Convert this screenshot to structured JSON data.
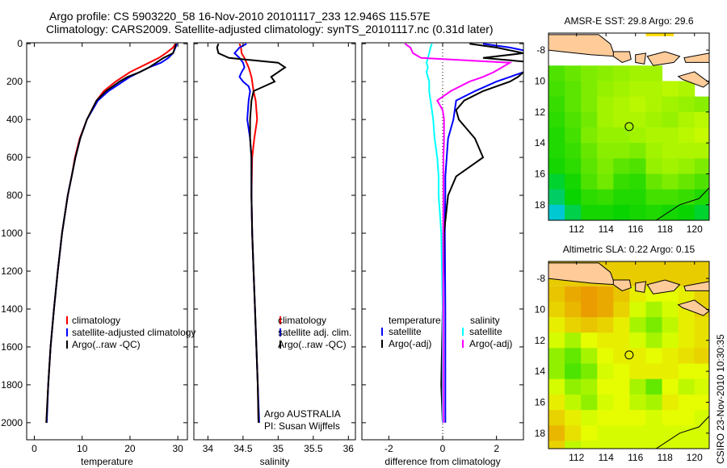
{
  "title_line1": "Argo profile: CS 5903220_58 16-Nov-2010 20101117_233 12.946S 115.57E",
  "title_line2": "Climatology: CARS2009. Satellite-adjusted climatology: synTS_20101117.nc (0.31d later)",
  "side_label": "CSIRO 23-Nov-2010 10:30:35",
  "colors": {
    "clim": "#ff0000",
    "sat": "#0000ff",
    "argo": "#000000",
    "sal_sat": "#00ffff",
    "sal_argo": "#ff00ff",
    "land": "#ffcc99"
  },
  "chart_data": [
    {
      "type": "line",
      "xlabel": "temperature",
      "xlim": [
        -1.6,
        32
      ],
      "ylim": [
        2090,
        -5
      ],
      "xticks": [
        "0",
        "10",
        "20",
        "30"
      ],
      "xtick_values": [
        0,
        10,
        20,
        30
      ],
      "yticks": [
        "0",
        "200",
        "400",
        "600",
        "800",
        "1000",
        "1200",
        "1400",
        "1600",
        "1800",
        "2000"
      ],
      "ytick_values": [
        0,
        200,
        400,
        600,
        800,
        1000,
        1200,
        1400,
        1600,
        1800,
        2000
      ],
      "depth": [
        0,
        20,
        50,
        75,
        100,
        125,
        150,
        175,
        200,
        250,
        300,
        400,
        500,
        600,
        700,
        800,
        1000,
        1200,
        1400,
        1600,
        1800,
        2000
      ],
      "legend": [
        "climatology",
        "satellite-adjusted climatology",
        "Argo(..raw -QC)"
      ],
      "series": [
        {
          "name": "climatology",
          "color": "#ff0000",
          "values": [
            29.5,
            29,
            27.5,
            26,
            24,
            22,
            20,
            18.5,
            17,
            14.5,
            13,
            11,
            9.5,
            8.5,
            7.8,
            7,
            5.8,
            4.9,
            4.1,
            3.4,
            2.9,
            2.5
          ]
        },
        {
          "name": "satellite-adjusted climatology",
          "color": "#0000ff",
          "values": [
            29.8,
            29.5,
            29,
            28,
            26.5,
            24,
            22,
            20,
            18.5,
            15.5,
            13.3,
            11,
            9.6,
            8.6,
            7.8,
            7,
            5.8,
            4.9,
            4.1,
            3.4,
            2.9,
            2.6
          ]
        },
        {
          "name": "Argo(..raw -QC)",
          "color": "#000000",
          "values": [
            29.6,
            29.4,
            29,
            27,
            25.5,
            24,
            22,
            19.5,
            17.8,
            15,
            13,
            11,
            9.6,
            8.6,
            7.8,
            7,
            5.8,
            4.9,
            4.1,
            3.4,
            2.9,
            2.5
          ]
        }
      ]
    },
    {
      "type": "line",
      "xlabel": "salinity",
      "xlim": [
        33.8,
        36.1
      ],
      "ylim": [
        2090,
        -5
      ],
      "xticks": [
        "34",
        "34.5",
        "35",
        "35.5",
        "36"
      ],
      "xtick_values": [
        34,
        34.5,
        35,
        35.5,
        36
      ],
      "depth": [
        0,
        20,
        50,
        75,
        100,
        125,
        150,
        175,
        200,
        225,
        250,
        300,
        400,
        500,
        600,
        800,
        1000,
        1200,
        1400,
        1600,
        1800,
        2000
      ],
      "legend": [
        "climatology",
        "satellite adj. clim.",
        "Argo(..raw -QC)"
      ],
      "annotation": [
        "Argo AUSTRALIA",
        "PI: Susan Wijffels"
      ],
      "series": [
        {
          "name": "climatology",
          "color": "#ff0000",
          "values": [
            34.45,
            34.47,
            34.48,
            34.52,
            34.55,
            34.58,
            34.6,
            34.62,
            34.63,
            34.64,
            34.65,
            34.68,
            34.7,
            34.66,
            34.63,
            34.62,
            34.63,
            34.65,
            34.67,
            34.69,
            34.71,
            34.72
          ]
        },
        {
          "name": "satellite adj. clim.",
          "color": "#0000ff",
          "values": [
            34.55,
            34.45,
            34.38,
            34.45,
            34.5,
            34.52,
            34.48,
            34.45,
            34.5,
            34.58,
            34.6,
            34.58,
            34.56,
            34.6,
            34.62,
            34.62,
            34.63,
            34.65,
            34.67,
            34.69,
            34.71,
            34.73
          ]
        },
        {
          "name": "Argo(..raw -QC)",
          "color": "#000000",
          "values": [
            34.15,
            34.13,
            34.15,
            34.3,
            35.0,
            35.1,
            35.0,
            34.9,
            34.95,
            34.8,
            34.65,
            34.62,
            34.6,
            34.6,
            34.62,
            34.62,
            34.63,
            34.65,
            34.67,
            34.69,
            34.71,
            34.72
          ]
        }
      ]
    },
    {
      "type": "line",
      "xlabel": "difference from climatology",
      "xlim": [
        -3,
        3
      ],
      "ylim": [
        2090,
        -5
      ],
      "xticks": [
        "-2",
        "0",
        "2"
      ],
      "xtick_values": [
        -2,
        0,
        2
      ],
      "depth": [
        0,
        20,
        50,
        75,
        100,
        125,
        150,
        175,
        200,
        250,
        300,
        350,
        400,
        500,
        600,
        700,
        800,
        1000,
        1400,
        1800,
        2000
      ],
      "legend_headers": [
        "temperature",
        "salinity"
      ],
      "legend": [
        "satellite",
        "Argo(-adj)",
        "satellite",
        "Argo(-adj)"
      ],
      "series": [
        {
          "name": "temperature satellite",
          "color": "#0000ff",
          "values": [
            1.5,
            2.5,
            3.5,
            3.8,
            4,
            3.5,
            3,
            2.5,
            2,
            1.2,
            0.5,
            0.45,
            0.4,
            0.2,
            0.15,
            0.1,
            0.1,
            0.08,
            0.1,
            0.1,
            0.1
          ]
        },
        {
          "name": "temperature Argo(-adj)",
          "color": "#000000",
          "values": [
            1,
            2,
            3,
            1.5,
            3.5,
            3.2,
            3,
            2.8,
            2.5,
            1.5,
            0.8,
            0.5,
            0.6,
            1.2,
            1.5,
            0.5,
            0.2,
            0.05,
            0,
            -0.05,
            0
          ]
        },
        {
          "name": "salinity satellite",
          "color": "#00ffff",
          "values": [
            -0.4,
            -0.45,
            -0.5,
            -0.55,
            -0.6,
            -0.55,
            -0.6,
            -0.55,
            -0.5,
            -0.5,
            -0.45,
            -0.4,
            -0.35,
            -0.3,
            -0.2,
            -0.15,
            -0.15,
            -0.05,
            0,
            0,
            0
          ]
        },
        {
          "name": "salinity Argo(-adj)",
          "color": "#ff00ff",
          "values": [
            -1.4,
            -1.2,
            -1.1,
            -0.8,
            2.5,
            2.2,
            1.9,
            1.5,
            1.0,
            0.3,
            -0.2,
            0,
            0.05,
            0.05,
            0.03,
            0.03,
            0.03,
            0.02,
            0.02,
            0.02,
            0.02
          ]
        }
      ]
    },
    {
      "type": "heatmap",
      "title": "AMSR-E SST: 29.8 Argo: 29.6",
      "xlim": [
        110.1,
        121
      ],
      "ylim": [
        -6.9,
        -19.0
      ],
      "xticks": [
        "112",
        "114",
        "116",
        "118",
        "120"
      ],
      "xtick_values": [
        112,
        114,
        116,
        118,
        120
      ],
      "yticks": [
        "-8",
        "10",
        "12",
        "14",
        "16",
        "18"
      ],
      "ytick_values": [
        -8,
        -10,
        -12,
        -14,
        -16,
        -18
      ],
      "argo_position": [
        115.57,
        -12.946
      ],
      "grid_lat_start": -9,
      "grid_lat_step": -1,
      "grid_lon_start": 110.1,
      "grid_lon_step": 1.1,
      "values": [
        [
          28.8,
          29.0,
          29.2,
          29.3,
          29.4,
          29.5,
          29.5,
          null,
          null,
          null
        ],
        [
          28.7,
          28.9,
          29.2,
          29.4,
          29.5,
          29.6,
          29.6,
          29.7,
          29.6,
          null
        ],
        [
          28.6,
          28.9,
          29.2,
          29.5,
          29.6,
          29.7,
          29.6,
          29.5,
          29.4,
          29.3
        ],
        [
          28.5,
          28.8,
          29.1,
          29.5,
          29.6,
          29.6,
          29.5,
          29.4,
          29.6,
          29.7
        ],
        [
          28.4,
          28.7,
          29.2,
          29.4,
          29.4,
          29.5,
          29.6,
          29.6,
          29.7,
          29.8
        ],
        [
          28.4,
          28.6,
          29.0,
          29.3,
          29.3,
          29.2,
          29.5,
          29.6,
          29.6,
          29.6
        ],
        [
          28.3,
          28.5,
          28.9,
          29.2,
          28.9,
          28.8,
          29.4,
          29.5,
          29.4,
          29.2
        ],
        [
          28.1,
          28.3,
          28.8,
          29.1,
          28.6,
          28.5,
          29.0,
          29.2,
          29.0,
          28.8
        ],
        [
          27.9,
          28.2,
          28.5,
          28.6,
          28.4,
          28.4,
          28.7,
          28.7,
          28.6,
          28.4
        ],
        [
          27.5,
          28.0,
          28.3,
          28.3,
          28.2,
          28.3,
          28.4,
          28.3,
          28.2,
          28.1
        ]
      ],
      "value_range": [
        27.5,
        30.0
      ]
    },
    {
      "type": "heatmap",
      "title": "Altimetric SLA: 0.22 Argo: 0.15",
      "xlim": [
        110.1,
        121
      ],
      "ylim": [
        -6.9,
        -19.0
      ],
      "xticks": [
        "112",
        "114",
        "116",
        "118",
        "120"
      ],
      "xtick_values": [
        112,
        114,
        116,
        118,
        120
      ],
      "yticks": [
        "-8",
        "10",
        "12",
        "14",
        "16",
        "18"
      ],
      "ytick_values": [
        -8,
        -10,
        -12,
        -14,
        -16,
        -18
      ],
      "argo_position": [
        115.57,
        -12.946
      ],
      "grid_lat_start": -8.5,
      "grid_lat_step": -1,
      "grid_lon_start": 110.1,
      "grid_lon_step": 1.1,
      "values": [
        [
          0.26,
          0.3,
          0.32,
          0.3,
          0.26,
          0.2,
          0.18,
          0.18,
          0.2,
          0.24
        ],
        [
          0.24,
          0.28,
          0.32,
          0.3,
          0.24,
          0.16,
          0.12,
          0.16,
          0.2,
          0.24
        ],
        [
          0.2,
          0.24,
          0.26,
          0.24,
          0.2,
          0.12,
          0.08,
          0.14,
          0.2,
          0.22
        ],
        [
          0.16,
          0.12,
          0.18,
          0.2,
          0.2,
          0.16,
          0.12,
          0.16,
          0.2,
          0.22
        ],
        [
          0.1,
          0.06,
          0.12,
          0.18,
          0.2,
          0.2,
          0.18,
          0.2,
          0.22,
          0.24
        ],
        [
          0.1,
          0.04,
          0.08,
          0.16,
          0.18,
          0.2,
          0.2,
          0.2,
          0.18,
          0.18
        ],
        [
          0.16,
          0.1,
          0.12,
          0.18,
          0.18,
          0.12,
          0.06,
          0.18,
          0.14,
          0.16
        ],
        [
          0.2,
          0.14,
          0.1,
          0.16,
          0.18,
          0.14,
          0.12,
          0.2,
          0.18,
          0.18
        ],
        [
          0.24,
          0.2,
          0.16,
          0.18,
          0.18,
          0.18,
          0.16,
          0.18,
          0.18,
          0.16
        ],
        [
          0.28,
          0.22,
          0.18,
          0.16,
          0.16,
          0.16,
          0.16,
          0.16,
          0.16,
          0.16
        ],
        [
          0.24,
          0.14,
          0.16,
          0.16,
          0.16,
          0.16,
          0.16,
          0.16,
          0.16,
          0.16
        ]
      ],
      "value_range": [
        0.0,
        0.35
      ]
    }
  ]
}
